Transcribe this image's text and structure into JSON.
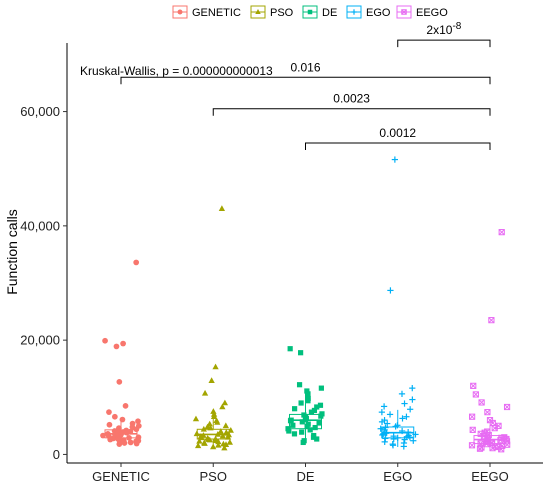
{
  "chart_data": {
    "type": "boxplot-with-points",
    "ylabel": "Function calls",
    "xlabel": "",
    "ylim": [
      -1500,
      72000
    ],
    "y_ticks": [
      0,
      20000,
      40000,
      60000
    ],
    "y_tick_labels": [
      "0",
      "20,000",
      "40,000",
      "60,000"
    ],
    "categories": [
      "GENETIC",
      "PSO",
      "DE",
      "EGO",
      "EEGO"
    ],
    "legend_position": "top",
    "grid": false,
    "series": [
      {
        "name": "GENETIC",
        "color": "#F8766D",
        "marker": "circle",
        "box": {
          "q1": 2900,
          "median": 3600,
          "q3": 4300,
          "whisker_low": 1800,
          "whisker_high": 6300
        },
        "points": [
          33600,
          19900,
          19400,
          18900,
          12700,
          8500,
          7400,
          6600,
          6100,
          5800,
          5400,
          5200,
          5000,
          4800,
          4600,
          4400,
          4300,
          4200,
          4100,
          4000,
          3900,
          3800,
          3700,
          3600,
          3500,
          3400,
          3300,
          3200,
          3100,
          3000,
          2900,
          2800,
          2700,
          2600,
          2500,
          2400,
          2300,
          2200,
          2100,
          2000,
          1900,
          1800
        ]
      },
      {
        "name": "PSO",
        "color": "#A3A500",
        "marker": "triangle",
        "box": {
          "q1": 2700,
          "median": 3500,
          "q3": 4400,
          "whisker_low": 1000,
          "whisker_high": 7200
        },
        "points": [
          43000,
          15300,
          12900,
          10700,
          9000,
          8300,
          7500,
          7000,
          6600,
          6200,
          5900,
          5600,
          5300,
          5000,
          4800,
          4600,
          4400,
          4200,
          4000,
          3800,
          3700,
          3600,
          3500,
          3400,
          3300,
          3200,
          3100,
          3000,
          2900,
          2800,
          2700,
          2600,
          2500,
          2400,
          2300,
          2200,
          2100,
          2000,
          1900,
          1800,
          1700,
          1600,
          1500,
          1300,
          1100
        ]
      },
      {
        "name": "DE",
        "color": "#00BF7D",
        "marker": "square",
        "box": {
          "q1": 4500,
          "median": 6000,
          "q3": 7000,
          "whisker_low": 2000,
          "whisker_high": 11000
        },
        "points": [
          18500,
          17800,
          12200,
          11600,
          11100,
          10600,
          10200,
          9800,
          9400,
          9000,
          8600,
          8300,
          8000,
          7700,
          7400,
          7100,
          6900,
          6700,
          6500,
          6300,
          6100,
          6000,
          5900,
          5700,
          5500,
          5300,
          5100,
          4900,
          4700,
          4500,
          4300,
          4100,
          3900,
          3600,
          3300,
          3000,
          2700,
          2400,
          2100
        ]
      },
      {
        "name": "EGO",
        "color": "#00B0F6",
        "marker": "plus",
        "box": {
          "q1": 2900,
          "median": 3800,
          "q3": 4800,
          "whisker_low": 1300,
          "whisker_high": 7800
        },
        "points": [
          51600,
          28700,
          11600,
          10600,
          9600,
          8900,
          8400,
          7900,
          7400,
          7000,
          6600,
          6300,
          6000,
          5700,
          5400,
          5100,
          4900,
          4700,
          4500,
          4300,
          4100,
          3900,
          3800,
          3700,
          3600,
          3500,
          3400,
          3300,
          3200,
          3100,
          3000,
          2900,
          2800,
          2700,
          2600,
          2400,
          2200,
          2000,
          1800,
          1600,
          1400
        ]
      },
      {
        "name": "EEGO",
        "color": "#E76BF3",
        "marker": "boxed-x",
        "box": {
          "q1": 1900,
          "median": 2600,
          "q3": 3300,
          "whisker_low": 900,
          "whisker_high": 5100
        },
        "points": [
          38900,
          23500,
          12000,
          10500,
          9100,
          8300,
          7400,
          6600,
          6000,
          5500,
          5000,
          4600,
          4300,
          4000,
          3800,
          3600,
          3400,
          3200,
          3000,
          2900,
          2800,
          2700,
          2600,
          2500,
          2400,
          2300,
          2200,
          2100,
          2000,
          1900,
          1800,
          1700,
          1600,
          1500,
          1400,
          1300,
          1200,
          1100,
          1000,
          900
        ]
      }
    ],
    "comparisons": [
      {
        "from": "EGO",
        "to": "EEGO",
        "y": 72500,
        "label": "2x10^-8",
        "label_base": "2x10",
        "label_exp": "-8"
      },
      {
        "from": "GENETIC",
        "to": "EEGO",
        "y": 66000,
        "label": "0.016"
      },
      {
        "from": "PSO",
        "to": "EEGO",
        "y": 60500,
        "label": "0.0023"
      },
      {
        "from": "DE",
        "to": "EEGO",
        "y": 54500,
        "label": "0.0012"
      }
    ],
    "overall_test": "Kruskal-Wallis, p = 0.000000000013"
  }
}
